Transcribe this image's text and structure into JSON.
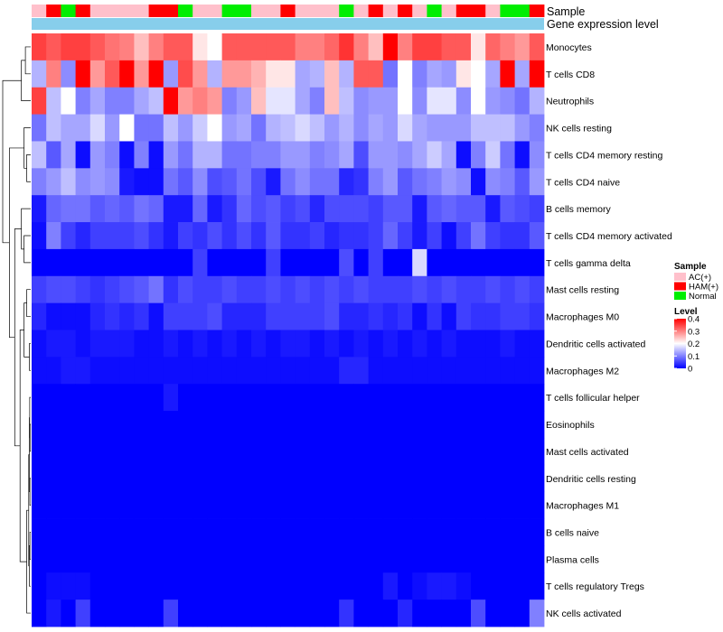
{
  "chart_data": {
    "type": "heatmap",
    "title": "",
    "annotation_rows": {
      "sample": "Sample",
      "gene_expression": "Gene expression level"
    },
    "sample_annotation": [
      "AC(+)",
      "HAM(+)",
      "Normal",
      "HAM(+)",
      "AC(+)",
      "AC(+)",
      "AC(+)",
      "AC(+)",
      "HAM(+)",
      "HAM(+)",
      "Normal",
      "AC(+)",
      "AC(+)",
      "Normal",
      "Normal",
      "AC(+)",
      "AC(+)",
      "HAM(+)",
      "AC(+)",
      "AC(+)",
      "AC(+)",
      "Normal",
      "AC(+)",
      "HAM(+)",
      "AC(+)",
      "HAM(+)",
      "AC(+)",
      "Normal",
      "AC(+)",
      "HAM(+)",
      "HAM(+)",
      "AC(+)",
      "Normal",
      "Normal",
      "HAM(+)"
    ],
    "rows": [
      "Monocytes",
      "T cells CD8",
      "Neutrophils",
      "NK cells resting",
      "T cells CD4 memory resting",
      "T cells CD4 naive",
      "B cells memory",
      "T cells CD4 memory activated",
      "T cells gamma delta",
      "Mast cells resting",
      "Macrophages M0",
      "Dendritic cells activated",
      "Macrophages M2",
      "T cells follicular helper",
      "Eosinophils",
      "Mast cells activated",
      "Dendritic cells resting",
      "Macrophages M1",
      "B cells naive",
      "Plasma cells",
      "T cells regulatory  Tregs",
      "NK cells activated"
    ],
    "values": [
      [
        0.35,
        0.33,
        0.35,
        0.35,
        0.33,
        0.31,
        0.3,
        0.25,
        0.3,
        0.33,
        0.33,
        0.22,
        0.2,
        0.33,
        0.33,
        0.33,
        0.33,
        0.33,
        0.3,
        0.3,
        0.32,
        0.36,
        0.3,
        0.25,
        0.4,
        0.3,
        0.35,
        0.35,
        0.33,
        0.33,
        0.22,
        0.32,
        0.3,
        0.28,
        0.33
      ],
      [
        0.14,
        0.3,
        0.11,
        0.4,
        0.28,
        0.33,
        0.4,
        0.28,
        0.4,
        0.12,
        0.34,
        0.28,
        0.14,
        0.28,
        0.28,
        0.26,
        0.22,
        0.22,
        0.13,
        0.14,
        0.25,
        0.14,
        0.33,
        0.33,
        0.09,
        0.2,
        0.1,
        0.13,
        0.12,
        0.22,
        0.2,
        0.13,
        0.4,
        0.13,
        0.4
      ],
      [
        0.35,
        0.15,
        0.2,
        0.1,
        0.13,
        0.1,
        0.1,
        0.13,
        0.15,
        0.4,
        0.28,
        0.3,
        0.28,
        0.1,
        0.12,
        0.25,
        0.18,
        0.18,
        0.13,
        0.1,
        0.25,
        0.15,
        0.11,
        0.12,
        0.12,
        0.2,
        0.11,
        0.18,
        0.18,
        0.11,
        0.2,
        0.12,
        0.11,
        0.09,
        0.14
      ],
      [
        0.09,
        0.15,
        0.13,
        0.13,
        0.17,
        0.12,
        0.2,
        0.09,
        0.09,
        0.15,
        0.12,
        0.16,
        0.2,
        0.12,
        0.13,
        0.09,
        0.14,
        0.15,
        0.17,
        0.15,
        0.12,
        0.14,
        0.11,
        0.13,
        0.12,
        0.17,
        0.13,
        0.12,
        0.12,
        0.12,
        0.15,
        0.15,
        0.15,
        0.12,
        0.1
      ],
      [
        0.15,
        0.07,
        0.13,
        0.01,
        0.12,
        0.1,
        0.01,
        0.1,
        0.01,
        0.12,
        0.09,
        0.14,
        0.14,
        0.09,
        0.09,
        0.1,
        0.1,
        0.12,
        0.12,
        0.1,
        0.11,
        0.13,
        0.06,
        0.12,
        0.12,
        0.11,
        0.13,
        0.16,
        0.13,
        0.01,
        0.1,
        0.16,
        0.09,
        0.01,
        0.11
      ],
      [
        0.1,
        0.12,
        0.15,
        0.11,
        0.12,
        0.11,
        0.02,
        0.01,
        0.01,
        0.09,
        0.07,
        0.11,
        0.06,
        0.07,
        0.09,
        0.06,
        0.02,
        0.09,
        0.11,
        0.09,
        0.09,
        0.03,
        0.04,
        0.1,
        0.12,
        0.07,
        0.09,
        0.1,
        0.12,
        0.11,
        0.01,
        0.11,
        0.1,
        0.07,
        0.12
      ],
      [
        0.02,
        0.08,
        0.09,
        0.09,
        0.07,
        0.08,
        0.07,
        0.09,
        0.08,
        0.02,
        0.02,
        0.08,
        0.02,
        0.04,
        0.08,
        0.06,
        0.07,
        0.05,
        0.06,
        0.03,
        0.06,
        0.06,
        0.06,
        0.05,
        0.07,
        0.07,
        0.02,
        0.07,
        0.08,
        0.07,
        0.07,
        0.02,
        0.07,
        0.06,
        0.05
      ],
      [
        0.01,
        0.1,
        0.05,
        0.03,
        0.05,
        0.05,
        0.05,
        0.06,
        0.04,
        0.02,
        0.05,
        0.04,
        0.06,
        0.04,
        0.06,
        0.04,
        0.07,
        0.04,
        0.04,
        0.05,
        0.03,
        0.04,
        0.04,
        0.05,
        0.08,
        0.05,
        0.02,
        0.05,
        0.01,
        0.05,
        0.09,
        0.05,
        0.04,
        0.04,
        0.07
      ],
      [
        0.0,
        0.0,
        0.0,
        0.0,
        0.0,
        0.0,
        0.0,
        0.0,
        0.0,
        0.0,
        0.0,
        0.05,
        0.0,
        0.0,
        0.0,
        0.0,
        0.05,
        0.0,
        0.0,
        0.0,
        0.0,
        0.06,
        0.0,
        0.05,
        0.0,
        0.0,
        0.17,
        0.0,
        0.0,
        0.0,
        0.0,
        0.0,
        0.0,
        0.0,
        0.0
      ],
      [
        0.05,
        0.06,
        0.06,
        0.05,
        0.04,
        0.05,
        0.06,
        0.07,
        0.09,
        0.04,
        0.06,
        0.05,
        0.05,
        0.06,
        0.05,
        0.05,
        0.06,
        0.05,
        0.06,
        0.05,
        0.06,
        0.05,
        0.06,
        0.05,
        0.05,
        0.05,
        0.06,
        0.05,
        0.06,
        0.05,
        0.05,
        0.06,
        0.05,
        0.06,
        0.05
      ],
      [
        0.03,
        0.01,
        0.01,
        0.01,
        0.03,
        0.04,
        0.03,
        0.04,
        0.01,
        0.05,
        0.05,
        0.05,
        0.06,
        0.03,
        0.03,
        0.03,
        0.05,
        0.05,
        0.05,
        0.05,
        0.06,
        0.03,
        0.03,
        0.04,
        0.03,
        0.04,
        0.01,
        0.04,
        0.01,
        0.05,
        0.04,
        0.04,
        0.05,
        0.05,
        0.04
      ],
      [
        0.01,
        0.02,
        0.02,
        0.01,
        0.02,
        0.02,
        0.02,
        0.01,
        0.01,
        0.02,
        0.01,
        0.02,
        0.01,
        0.02,
        0.01,
        0.02,
        0.01,
        0.02,
        0.02,
        0.01,
        0.02,
        0.01,
        0.02,
        0.01,
        0.02,
        0.01,
        0.02,
        0.01,
        0.02,
        0.01,
        0.01,
        0.01,
        0.02,
        0.01,
        0.01
      ],
      [
        0.01,
        0.01,
        0.02,
        0.02,
        0.01,
        0.01,
        0.01,
        0.01,
        0.01,
        0.01,
        0.01,
        0.01,
        0.01,
        0.01,
        0.01,
        0.01,
        0.01,
        0.01,
        0.01,
        0.01,
        0.01,
        0.03,
        0.03,
        0.01,
        0.01,
        0.01,
        0.01,
        0.01,
        0.01,
        0.01,
        0.01,
        0.01,
        0.01,
        0.01,
        0.01
      ],
      [
        0.0,
        0.0,
        0.0,
        0.0,
        0.0,
        0.0,
        0.0,
        0.0,
        0.0,
        0.02,
        0.0,
        0.0,
        0.0,
        0.0,
        0.0,
        0.0,
        0.0,
        0.0,
        0.0,
        0.0,
        0.0,
        0.0,
        0.0,
        0.0,
        0.0,
        0.0,
        0.0,
        0.0,
        0.0,
        0.0,
        0.0,
        0.0,
        0.0,
        0.0,
        0.0
      ],
      [
        0.0,
        0.0,
        0.0,
        0.0,
        0.0,
        0.0,
        0.0,
        0.0,
        0.0,
        0.0,
        0.0,
        0.0,
        0.0,
        0.0,
        0.0,
        0.0,
        0.0,
        0.0,
        0.0,
        0.0,
        0.0,
        0.0,
        0.0,
        0.0,
        0.0,
        0.0,
        0.0,
        0.0,
        0.0,
        0.0,
        0.0,
        0.0,
        0.0,
        0.0,
        0.0
      ],
      [
        0.0,
        0.0,
        0.0,
        0.0,
        0.0,
        0.0,
        0.0,
        0.0,
        0.0,
        0.0,
        0.0,
        0.0,
        0.0,
        0.0,
        0.0,
        0.0,
        0.0,
        0.0,
        0.0,
        0.0,
        0.0,
        0.0,
        0.0,
        0.0,
        0.0,
        0.0,
        0.0,
        0.0,
        0.0,
        0.0,
        0.0,
        0.0,
        0.0,
        0.0,
        0.0
      ],
      [
        0.0,
        0.0,
        0.0,
        0.0,
        0.0,
        0.0,
        0.0,
        0.0,
        0.0,
        0.0,
        0.0,
        0.0,
        0.0,
        0.0,
        0.0,
        0.0,
        0.0,
        0.0,
        0.0,
        0.0,
        0.0,
        0.0,
        0.0,
        0.0,
        0.0,
        0.0,
        0.0,
        0.0,
        0.0,
        0.0,
        0.0,
        0.0,
        0.0,
        0.0,
        0.0
      ],
      [
        0.0,
        0.0,
        0.0,
        0.0,
        0.0,
        0.0,
        0.0,
        0.0,
        0.0,
        0.0,
        0.0,
        0.0,
        0.0,
        0.0,
        0.0,
        0.0,
        0.0,
        0.0,
        0.0,
        0.0,
        0.0,
        0.0,
        0.0,
        0.0,
        0.0,
        0.0,
        0.0,
        0.0,
        0.0,
        0.0,
        0.0,
        0.0,
        0.0,
        0.0,
        0.0
      ],
      [
        0.0,
        0.0,
        0.0,
        0.0,
        0.0,
        0.0,
        0.0,
        0.0,
        0.0,
        0.0,
        0.0,
        0.0,
        0.0,
        0.0,
        0.0,
        0.0,
        0.0,
        0.0,
        0.0,
        0.0,
        0.0,
        0.0,
        0.0,
        0.0,
        0.0,
        0.0,
        0.0,
        0.0,
        0.0,
        0.0,
        0.0,
        0.0,
        0.0,
        0.0,
        0.0
      ],
      [
        0.0,
        0.0,
        0.0,
        0.0,
        0.0,
        0.0,
        0.0,
        0.0,
        0.0,
        0.0,
        0.0,
        0.0,
        0.0,
        0.0,
        0.0,
        0.0,
        0.0,
        0.0,
        0.0,
        0.0,
        0.0,
        0.0,
        0.0,
        0.0,
        0.0,
        0.0,
        0.0,
        0.0,
        0.0,
        0.0,
        0.0,
        0.0,
        0.0,
        0.0,
        0.0
      ],
      [
        0.0,
        0.01,
        0.01,
        0.01,
        0.0,
        0.0,
        0.0,
        0.0,
        0.0,
        0.0,
        0.0,
        0.0,
        0.0,
        0.0,
        0.0,
        0.0,
        0.0,
        0.0,
        0.0,
        0.0,
        0.0,
        0.0,
        0.0,
        0.0,
        0.02,
        0.0,
        0.01,
        0.02,
        0.02,
        0.01,
        0.0,
        0.0,
        0.0,
        0.0,
        0.0
      ],
      [
        0.0,
        0.02,
        0.0,
        0.05,
        0.0,
        0.0,
        0.0,
        0.0,
        0.0,
        0.05,
        0.0,
        0.0,
        0.0,
        0.0,
        0.0,
        0.0,
        0.0,
        0.0,
        0.0,
        0.0,
        0.0,
        0.04,
        0.0,
        0.0,
        0.0,
        0.03,
        0.0,
        0.0,
        0.0,
        0.0,
        0.06,
        0.0,
        0.0,
        0.0,
        0.1
      ]
    ],
    "legend": {
      "sample_title": "Sample",
      "sample_entries": [
        {
          "label": "AC(+)",
          "color": "#ffc0cb"
        },
        {
          "label": "HAM(+)",
          "color": "#ff0000"
        },
        {
          "label": "Normal",
          "color": "#00ee00"
        }
      ],
      "level_title": "Level",
      "level_ticks": [
        0.4,
        0.3,
        0.2,
        0.1,
        0
      ],
      "level_tick_labels": [
        "0.4",
        "0.3",
        "0.2",
        "0.1",
        "0"
      ]
    },
    "expression_bar_color": "#87ceeb",
    "color_scale": {
      "low": "#0000ff",
      "mid": "#ffffff",
      "high": "#ff0000",
      "mid_value": 0.2,
      "min": 0,
      "max": 0.4
    },
    "row_dendrogram": [
      {
        "left": 0,
        "right": 1,
        "height": 0.08
      },
      {
        "left": 4,
        "right": 5,
        "height": 0.06
      },
      {
        "left": 3,
        "right": "n1",
        "height": 0.1
      },
      {
        "left": "n0",
        "right": 2,
        "height": 0.14
      },
      {
        "left": 7,
        "right": 8,
        "height": 0.1
      },
      {
        "left": 6,
        "right": "n4",
        "height": 0.14
      },
      {
        "left": 9,
        "right": 10,
        "height": 0.06
      },
      {
        "left": 11,
        "right": 12,
        "height": 0.02
      },
      {
        "left": "n6",
        "right": "n7",
        "height": 0.1
      },
      {
        "left": 14,
        "right": 15,
        "height": 0.01
      },
      {
        "left": 13,
        "right": "n9",
        "height": 0.015
      },
      {
        "left": 16,
        "right": 17,
        "height": 0.012
      },
      {
        "left": "n10",
        "right": "n11",
        "height": 0.02
      },
      {
        "left": 18,
        "right": 19,
        "height": 0.012
      },
      {
        "left": "n13",
        "right": 20,
        "height": 0.022
      },
      {
        "left": "n12",
        "right": "n14",
        "height": 0.03
      },
      {
        "left": "n15",
        "right": 21,
        "height": 0.06
      },
      {
        "left": "n8",
        "right": "n16",
        "height": 0.16
      },
      {
        "left": "n5",
        "right": "n17",
        "height": 0.24
      },
      {
        "left": "n2",
        "right": "n18",
        "height": 0.32
      },
      {
        "left": "n3",
        "right": "n19",
        "height": 0.42
      }
    ]
  }
}
